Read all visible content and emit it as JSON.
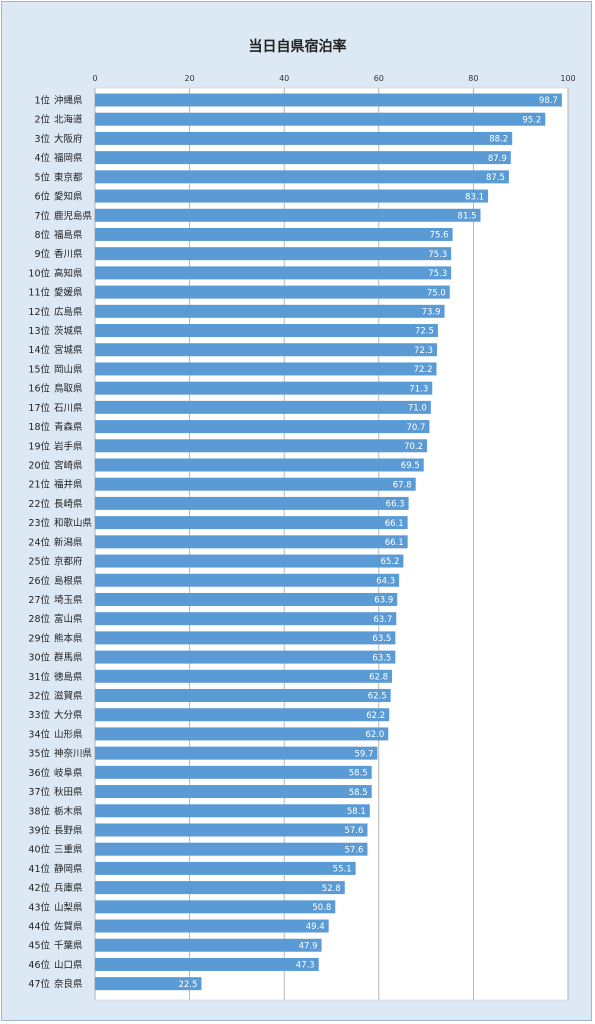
{
  "chart_data": {
    "type": "bar",
    "orientation": "horizontal",
    "title": "当日自県宿泊率",
    "xlabel": "",
    "ylabel": "",
    "xlim": [
      0,
      100
    ],
    "xticks": [
      0,
      20,
      40,
      60,
      80,
      100
    ],
    "grid": true,
    "bar_color": "#5b9bd5",
    "plot_background": "#ffffff",
    "chart_background": "#dde8f5",
    "categories": [
      "1位 沖縄県",
      "2位 北海道",
      "3位 大阪府",
      "4位 福岡県",
      "5位 東京都",
      "6位 愛知県",
      "7位 鹿児島県",
      "8位 福島県",
      "9位 香川県",
      "10位 高知県",
      "11位 愛媛県",
      "12位 広島県",
      "13位 茨城県",
      "14位 宮城県",
      "15位 岡山県",
      "16位 鳥取県",
      "17位 石川県",
      "18位 青森県",
      "19位 岩手県",
      "20位 宮崎県",
      "21位 福井県",
      "22位 長崎県",
      "23位 和歌山県",
      "24位 新潟県",
      "25位 京都府",
      "26位 島根県",
      "27位 埼玉県",
      "28位 富山県",
      "29位 熊本県",
      "30位 群馬県",
      "31位 徳島県",
      "32位 滋賀県",
      "33位 大分県",
      "34位 山形県",
      "35位 神奈川県",
      "36位 岐阜県",
      "37位 秋田県",
      "38位 栃木県",
      "39位 長野県",
      "40位 三重県",
      "41位 静岡県",
      "42位 兵庫県",
      "43位 山梨県",
      "44位 佐賀県",
      "45位 千葉県",
      "46位 山口県",
      "47位 奈良県"
    ],
    "values": [
      98.7,
      95.2,
      88.2,
      87.9,
      87.5,
      83.1,
      81.5,
      75.6,
      75.3,
      75.3,
      75.0,
      73.9,
      72.5,
      72.3,
      72.2,
      71.3,
      71.0,
      70.7,
      70.2,
      69.5,
      67.8,
      66.3,
      66.1,
      66.1,
      65.2,
      64.3,
      63.9,
      63.7,
      63.5,
      63.5,
      62.8,
      62.5,
      62.2,
      62.0,
      59.7,
      58.5,
      58.5,
      58.1,
      57.6,
      57.6,
      55.1,
      52.8,
      50.8,
      49.4,
      47.9,
      47.3,
      22.5
    ]
  }
}
